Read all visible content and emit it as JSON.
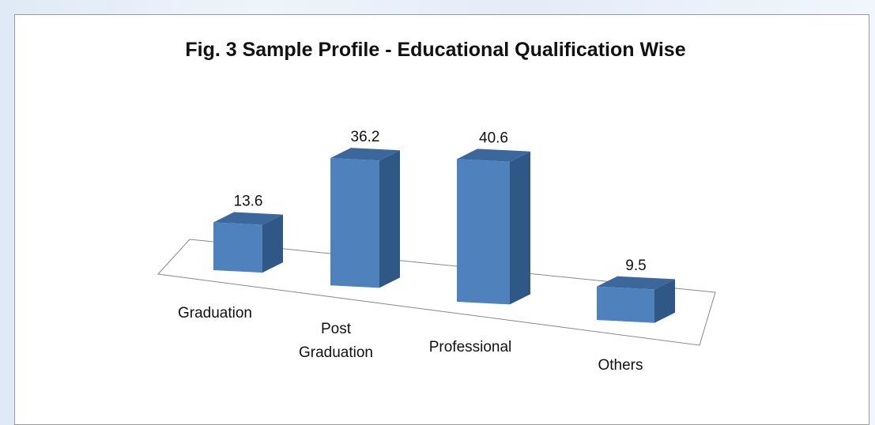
{
  "chart_data": {
    "type": "bar3d",
    "title": "Fig. 3 Sample Profile - Educational Qualification Wise",
    "categories": [
      "Graduation",
      "Post Graduation",
      "Professional",
      "Others"
    ],
    "values": [
      13.6,
      36.2,
      40.6,
      9.5
    ],
    "color": "#4f81bd"
  }
}
